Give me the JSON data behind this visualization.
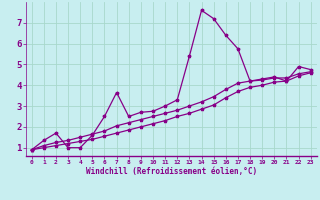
{
  "xlabel": "Windchill (Refroidissement éolien,°C)",
  "background_color": "#c8eef0",
  "grid_color": "#a8d8cc",
  "line_color": "#880088",
  "xlim": [
    -0.5,
    23.5
  ],
  "ylim": [
    0.6,
    8.0
  ],
  "xticks": [
    0,
    1,
    2,
    3,
    4,
    5,
    6,
    7,
    8,
    9,
    10,
    11,
    12,
    13,
    14,
    15,
    16,
    17,
    18,
    19,
    20,
    21,
    22,
    23
  ],
  "yticks": [
    1,
    2,
    3,
    4,
    5,
    6,
    7
  ],
  "line1_x": [
    0,
    1,
    2,
    3,
    4,
    5,
    6,
    7,
    8,
    9,
    10,
    11,
    12,
    13,
    14,
    15,
    16,
    17,
    18,
    19,
    20,
    21,
    22,
    23
  ],
  "line1_y": [
    0.9,
    1.35,
    1.7,
    1.0,
    1.0,
    1.6,
    2.5,
    3.65,
    2.5,
    2.7,
    2.75,
    3.0,
    3.3,
    5.4,
    7.6,
    7.2,
    6.4,
    5.75,
    4.2,
    4.3,
    4.4,
    4.2,
    4.9,
    4.75
  ],
  "line2_x": [
    0,
    1,
    2,
    3,
    4,
    5,
    6,
    7,
    8,
    9,
    10,
    11,
    12,
    13,
    14,
    15,
    16,
    17,
    18,
    19,
    20,
    21,
    22,
    23
  ],
  "line2_y": [
    0.9,
    1.1,
    1.25,
    1.35,
    1.5,
    1.65,
    1.8,
    2.05,
    2.2,
    2.35,
    2.5,
    2.65,
    2.8,
    3.0,
    3.2,
    3.45,
    3.8,
    4.1,
    4.2,
    4.25,
    4.35,
    4.35,
    4.55,
    4.65
  ],
  "line3_x": [
    0,
    1,
    2,
    3,
    4,
    5,
    6,
    7,
    8,
    9,
    10,
    11,
    12,
    13,
    14,
    15,
    16,
    17,
    18,
    19,
    20,
    21,
    22,
    23
  ],
  "line3_y": [
    0.9,
    1.0,
    1.1,
    1.2,
    1.3,
    1.4,
    1.55,
    1.7,
    1.85,
    2.0,
    2.15,
    2.3,
    2.5,
    2.65,
    2.85,
    3.05,
    3.4,
    3.7,
    3.9,
    4.0,
    4.15,
    4.2,
    4.45,
    4.6
  ]
}
